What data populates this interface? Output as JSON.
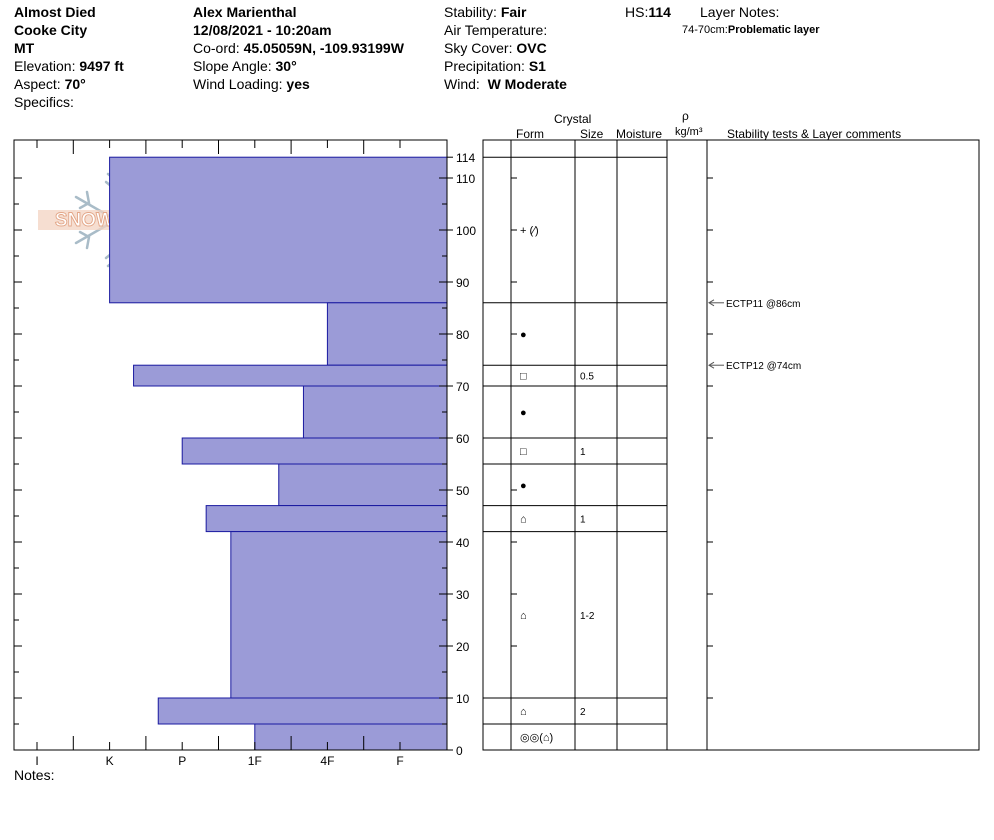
{
  "header": {
    "col1": {
      "title": "Almost Died",
      "location": "Cooke City",
      "state": "MT",
      "elevation_label": "Elevation:",
      "elevation_value": "9497 ft",
      "aspect_label": "Aspect:",
      "aspect_value": "70°",
      "specifics_label": "Specifics:"
    },
    "col2": {
      "observer": "Alex Marienthal",
      "datetime": "12/08/2021 - 10:20am",
      "coord_label": "Co-ord:",
      "coord_value": "45.05059N, -109.93199W",
      "slope_label": "Slope Angle:",
      "slope_value": "30°",
      "wind_loading_label": "Wind Loading:",
      "wind_loading_value": "yes"
    },
    "col3": {
      "stability_label": "Stability:",
      "stability_value": "Fair",
      "air_temp_label": "Air Temperature:",
      "sky_label": "Sky Cover:",
      "sky_value": "OVC",
      "precip_label": "Precipitation:",
      "precip_value": "S1",
      "wind_label": "Wind:",
      "wind_value": "W Moderate"
    },
    "hs_label": "HS:",
    "hs_value": "114",
    "layer_notes_label": "Layer Notes:",
    "layer_note_range": "74-70cm:",
    "layer_note_text": "Problematic layer"
  },
  "logo_text": "SNOW PILOT",
  "table_headers": {
    "crystal": "Crystal",
    "form": "Form",
    "size": "Size",
    "moisture": "Moisture",
    "rho": "ρ",
    "density_unit": "kg/m³",
    "comments": "Stability tests & Layer comments"
  },
  "notes_label": "Notes:",
  "chart_data": {
    "type": "bar",
    "orientation": "horizontal",
    "xlabel": "",
    "ylabel": "",
    "hardness_ticks": [
      "I",
      "K",
      "P",
      "1F",
      "4F",
      "F"
    ],
    "ylim": [
      0,
      114
    ],
    "y_ticks": [
      0,
      10,
      20,
      30,
      40,
      50,
      60,
      70,
      80,
      90,
      100,
      110,
      114
    ],
    "hardness_layers": [
      {
        "bottom": 86,
        "top": 114,
        "hardness_index": 1.0
      },
      {
        "bottom": 74,
        "top": 86,
        "hardness_index": 4.0
      },
      {
        "bottom": 70,
        "top": 74,
        "hardness_index": 1.33
      },
      {
        "bottom": 60,
        "top": 70,
        "hardness_index": 3.67
      },
      {
        "bottom": 55,
        "top": 60,
        "hardness_index": 2.0
      },
      {
        "bottom": 47,
        "top": 55,
        "hardness_index": 3.33
      },
      {
        "bottom": 42,
        "top": 47,
        "hardness_index": 2.33
      },
      {
        "bottom": 10,
        "top": 42,
        "hardness_index": 2.67
      },
      {
        "bottom": 5,
        "top": 10,
        "hardness_index": 1.67
      },
      {
        "bottom": 0,
        "top": 5,
        "hardness_index": 3.0
      }
    ],
    "layer_boundaries": [
      114,
      86,
      74,
      70,
      60,
      55,
      47,
      42,
      10,
      5,
      0
    ],
    "layers": [
      {
        "bottom": 86,
        "top": 114,
        "form": "+ (⁄)",
        "size": ""
      },
      {
        "bottom": 74,
        "top": 86,
        "form": "●",
        "size": ""
      },
      {
        "bottom": 70,
        "top": 74,
        "form": "□",
        "size": "0.5"
      },
      {
        "bottom": 60,
        "top": 70,
        "form": "●",
        "size": ""
      },
      {
        "bottom": 55,
        "top": 60,
        "form": "□",
        "size": "1"
      },
      {
        "bottom": 47,
        "top": 55,
        "form": "●",
        "size": ""
      },
      {
        "bottom": 42,
        "top": 47,
        "form": "⌂",
        "size": "1"
      },
      {
        "bottom": 10,
        "top": 42,
        "form": "⌂",
        "size": "1-2"
      },
      {
        "bottom": 5,
        "top": 10,
        "form": "⌂",
        "size": "2"
      },
      {
        "bottom": 0,
        "top": 5,
        "form": "◎◎(⌂)",
        "size": ""
      }
    ],
    "tests": [
      {
        "depth": 86,
        "label": "ECTP11 @86cm"
      },
      {
        "depth": 74,
        "label": "ECTP12 @74cm"
      }
    ],
    "colors": {
      "bar_fill": "#9b9bd7",
      "bar_stroke": "#1a1aa0",
      "logo": "#e8b39a",
      "snowflake": "#a9bcc8"
    }
  }
}
